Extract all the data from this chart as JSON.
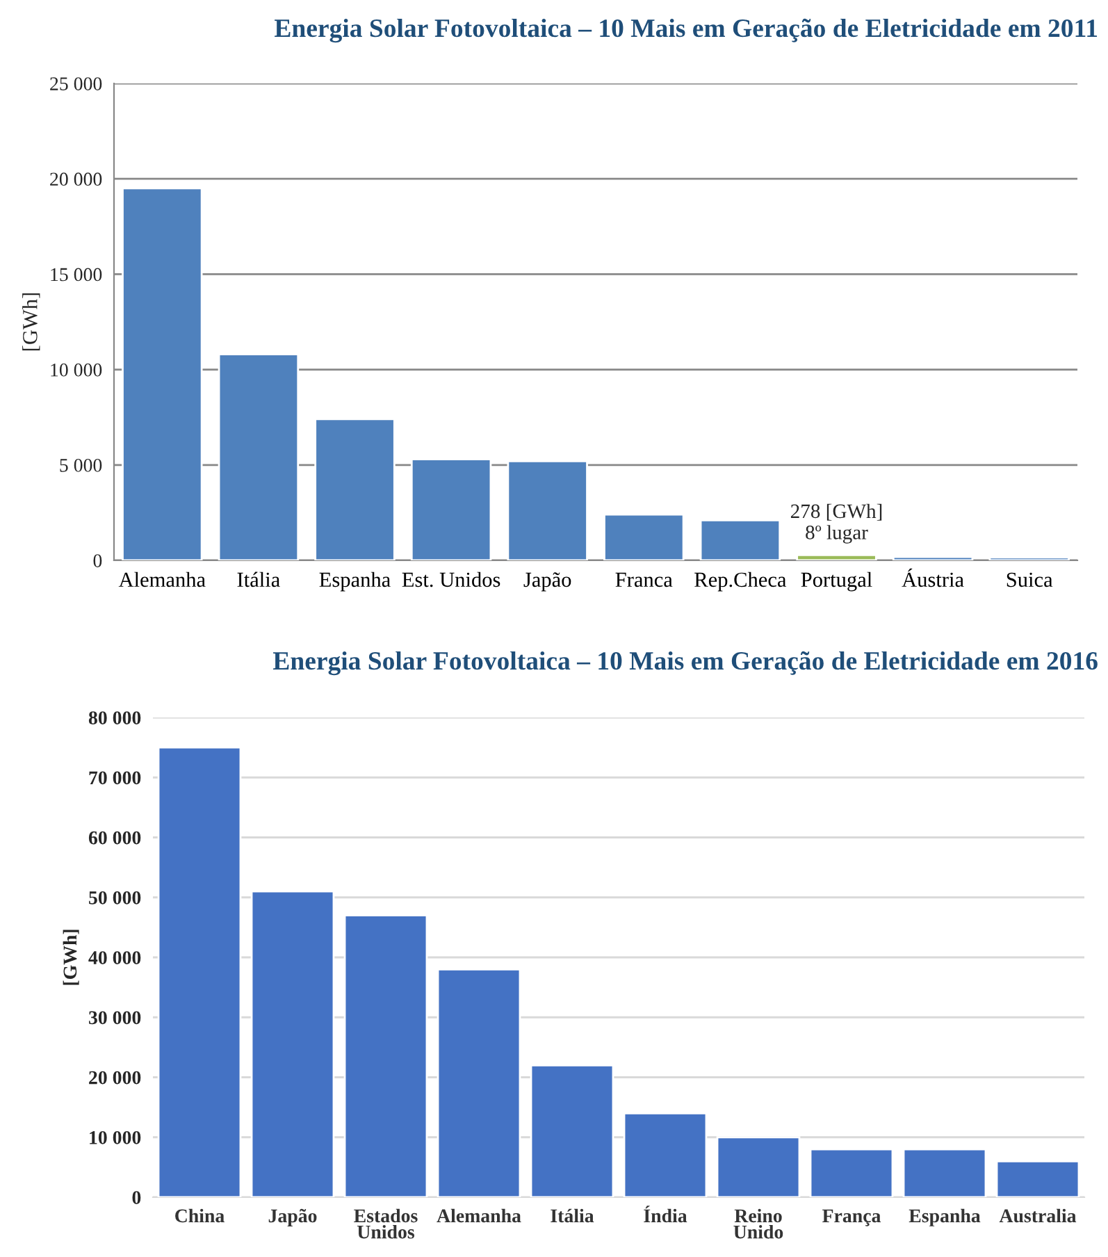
{
  "chart_data": [
    {
      "type": "bar",
      "title": "Energia Solar Fotovoltaica – 10 Mais em Geração de Eletricidade em 2011",
      "ylabel": "[GWh]",
      "categories": [
        "Alemanha",
        "Itália",
        "Espanha",
        "Est. Unidos",
        "Japão",
        "Franca",
        "Rep.Checa",
        "Portugal",
        "Áustria",
        "Suica"
      ],
      "values": [
        19500,
        10800,
        7400,
        5300,
        5200,
        2400,
        2100,
        278,
        175,
        150
      ],
      "colors": [
        "#4f81bd",
        "#4f81bd",
        "#4f81bd",
        "#4f81bd",
        "#4f81bd",
        "#4f81bd",
        "#4f81bd",
        "#9bbb59",
        "#4f81bd",
        "#4f81bd"
      ],
      "annotations": [
        {
          "text": "278 [GWh]\n8º lugar",
          "x": "Portugal",
          "y": 278
        }
      ],
      "ylim": [
        0,
        25000
      ],
      "yticks": [
        {
          "value": 0,
          "label": "0"
        },
        {
          "value": 5000,
          "label": "5 000"
        },
        {
          "value": 10000,
          "label": "10 000"
        },
        {
          "value": 15000,
          "label": "15 000"
        },
        {
          "value": 20000,
          "label": "20 000"
        },
        {
          "value": 25000,
          "label": "25 000"
        }
      ],
      "grid": "y"
    },
    {
      "type": "bar",
      "title": "Energia Solar Fotovoltaica – 10 Mais em Geração de Eletricidade em 2016",
      "ylabel": "[GWh]",
      "categories": [
        "China",
        "Japão",
        "Estados\nUnidos",
        "Alemanha",
        "Itália",
        "Índia",
        "Reino\nUnido",
        "França",
        "Espanha",
        "Australia"
      ],
      "values": [
        75000,
        51000,
        47000,
        38000,
        22000,
        14000,
        10000,
        8000,
        8000,
        6000
      ],
      "color": "#4472c4",
      "ylim": [
        0,
        80000
      ],
      "yticks": [
        {
          "value": 0,
          "label": "0"
        },
        {
          "value": 10000,
          "label": "10 000"
        },
        {
          "value": 20000,
          "label": "20 000"
        },
        {
          "value": 30000,
          "label": "30 000"
        },
        {
          "value": 40000,
          "label": "40 000"
        },
        {
          "value": 50000,
          "label": "50 000"
        },
        {
          "value": 60000,
          "label": "60 000"
        },
        {
          "value": 70000,
          "label": "70 000"
        },
        {
          "value": 80000,
          "label": "80 000"
        }
      ],
      "grid": "y"
    }
  ]
}
